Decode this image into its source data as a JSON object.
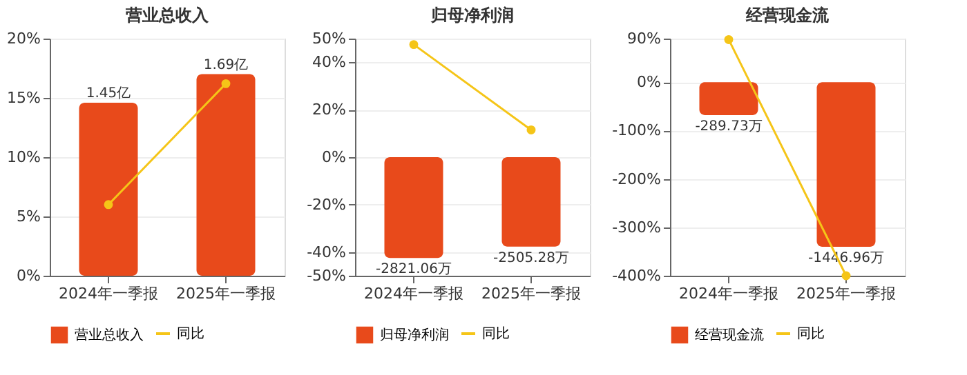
{
  "chart_data": [
    {
      "type": "bar",
      "title": "营业总收入",
      "categories": [
        "2024年一季报",
        "2025年一季报"
      ],
      "series": [
        {
          "name": "营业总收入",
          "axis": "y2",
          "color": "#e84a1b",
          "values": [
            1.45,
            1.69
          ],
          "value_labels": [
            "1.45亿",
            "1.69亿"
          ]
        },
        {
          "name": "同比",
          "type": "line",
          "color": "#f5c518",
          "values": [
            6.0,
            16.2
          ]
        }
      ],
      "ylim": [
        0,
        20
      ],
      "yticks": [
        {
          "value": 0,
          "label": "0%"
        },
        {
          "value": 5,
          "label": "5%"
        },
        {
          "value": 10,
          "label": "10%"
        },
        {
          "value": 15,
          "label": "15%"
        },
        {
          "value": 20,
          "label": "20%"
        }
      ],
      "grid": "y",
      "legend": "bottom",
      "marker": "circle"
    },
    {
      "type": "bar",
      "title": "归母净利润",
      "categories": [
        "2024年一季报",
        "2025年一季报"
      ],
      "series": [
        {
          "name": "归母净利润",
          "axis": "y2",
          "color": "#e84a1b",
          "values": [
            -2821.06,
            -2505.28
          ],
          "value_labels": [
            "-2821.06万",
            "-2505.28万"
          ]
        },
        {
          "name": "同比",
          "type": "line",
          "color": "#f5c518",
          "values": [
            47.5,
            11.5
          ]
        }
      ],
      "ylim": [
        -50,
        50
      ],
      "yticks": [
        {
          "value": -50,
          "label": "-50%"
        },
        {
          "value": -40,
          "label": "-40%"
        },
        {
          "value": -20,
          "label": "-20%"
        },
        {
          "value": 0,
          "label": "0%"
        },
        {
          "value": 20,
          "label": "20%"
        },
        {
          "value": 40,
          "label": "40%"
        },
        {
          "value": 50,
          "label": "50%"
        }
      ],
      "grid": "y",
      "legend": "bottom",
      "marker": "circle"
    },
    {
      "type": "bar",
      "title": "经营现金流",
      "categories": [
        "2024年一季报",
        "2025年一季报"
      ],
      "series": [
        {
          "name": "经营现金流",
          "axis": "y2",
          "color": "#e84a1b",
          "values": [
            -289.73,
            -1446.96
          ],
          "value_labels": [
            "-289.73万",
            "-1446.96万"
          ]
        },
        {
          "name": "同比",
          "type": "line",
          "color": "#f5c518",
          "values": [
            88,
            -400
          ]
        }
      ],
      "ylim": [
        -400,
        90
      ],
      "yticks": [
        {
          "value": -400,
          "label": "-400%"
        },
        {
          "value": -300,
          "label": "-300%"
        },
        {
          "value": -200,
          "label": "-200%"
        },
        {
          "value": -100,
          "label": "-100%"
        },
        {
          "value": 0,
          "label": "0%"
        },
        {
          "value": 90,
          "label": "90%"
        }
      ],
      "grid": "y",
      "legend": "bottom",
      "marker": "circle"
    }
  ]
}
